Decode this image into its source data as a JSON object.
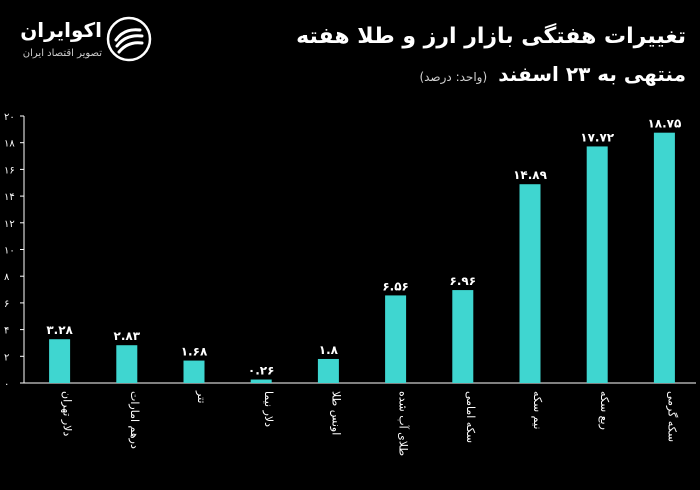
{
  "header": {
    "title": "تغییرات هفتگی بازار ارز و طلا هفته",
    "subtitle": "منتهی به ۲۳ اسفند",
    "unit_note": "(واحد: درصد)"
  },
  "brand": {
    "name": "اکوایران",
    "tagline": "تصویر اقتصاد ایران",
    "logo_icon": "swirl-logo-icon"
  },
  "colors": {
    "background": "#000000",
    "bar": "#3fd6d0",
    "text": "#ffffff"
  },
  "chart_data": {
    "type": "bar",
    "categories": [
      "دلار تهران",
      "درهم امارات",
      "تتر",
      "دلار نیما",
      "اونس طلا",
      "طلای آب شده",
      "سکه امامی",
      "نیم سکه",
      "ربع سکه",
      "سکه گرمی"
    ],
    "values": [
      3.28,
      2.83,
      1.68,
      0.26,
      1.8,
      6.56,
      6.96,
      14.89,
      17.72,
      18.75
    ],
    "value_labels": [
      "۳.۲۸",
      "۲.۸۳",
      "۱.۶۸",
      "۰.۲۶",
      "۱.۸",
      "۶.۵۶",
      "۶.۹۶",
      "۱۴.۸۹",
      "۱۷.۷۲",
      "۱۸.۷۵"
    ],
    "yticks": [
      0,
      2,
      4,
      6,
      8,
      10,
      12,
      14,
      16,
      18,
      20
    ],
    "ytick_labels": [
      "۰",
      "۲",
      "۴",
      "۶",
      "۸",
      "۱۰",
      "۱۲",
      "۱۴",
      "۱۶",
      "۱۸",
      "۲۰"
    ],
    "ylim": [
      0,
      20
    ],
    "grid": false,
    "legend": "none"
  }
}
